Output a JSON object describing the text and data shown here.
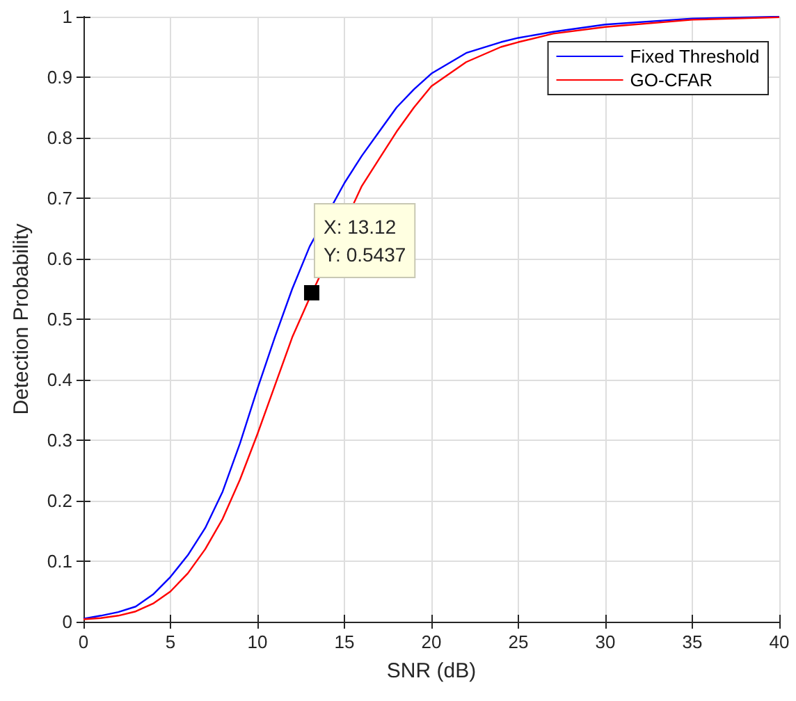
{
  "chart_data": {
    "type": "line",
    "xlabel": "SNR (dB)",
    "ylabel": "Detection Probability",
    "xlim": [
      0,
      40
    ],
    "xticks": [
      0,
      5,
      10,
      15,
      20,
      25,
      30,
      35,
      40
    ],
    "ylim": [
      0,
      1
    ],
    "yticks": [
      0,
      0.1,
      0.2,
      0.3,
      0.4,
      0.5,
      0.6,
      0.7,
      0.8,
      0.9,
      1
    ],
    "grid": true,
    "legend": "top right",
    "marker": "none",
    "line_style": "solid",
    "annotations": [
      {
        "text": "X: 13.12\nY: 0.5437",
        "x": 13.12,
        "y": 0.5437
      }
    ],
    "series": [
      {
        "name": "Fixed Threshold",
        "color": "#0000ff",
        "x": [
          0,
          1,
          2,
          3,
          4,
          5,
          6,
          7,
          8,
          9,
          10,
          11,
          12,
          13,
          14,
          15,
          16,
          17,
          18,
          19,
          20,
          22,
          24,
          25,
          27,
          30,
          35,
          40
        ],
        "values": [
          0.005,
          0.01,
          0.016,
          0.025,
          0.045,
          0.074,
          0.11,
          0.155,
          0.215,
          0.295,
          0.385,
          0.47,
          0.55,
          0.62,
          null,
          0.725,
          0.77,
          0.81,
          0.85,
          0.88,
          0.906,
          0.94,
          0.958,
          0.965,
          0.975,
          0.987,
          0.997,
          1.0
        ]
      },
      {
        "name": "GO-CFAR",
        "color": "#ff0000",
        "x": [
          0,
          1,
          2,
          3,
          4,
          5,
          6,
          7,
          8,
          9,
          10,
          11,
          12,
          13,
          14,
          15,
          16,
          17,
          18,
          19,
          20,
          22,
          24,
          25,
          27,
          30,
          35,
          40
        ],
        "values": [
          0.004,
          0.006,
          0.01,
          0.017,
          0.03,
          0.05,
          0.08,
          0.12,
          0.17,
          0.235,
          0.31,
          0.39,
          0.47,
          0.535,
          null,
          null,
          0.72,
          0.765,
          0.81,
          0.85,
          0.885,
          0.925,
          0.95,
          0.958,
          0.972,
          0.983,
          0.995,
          0.999
        ]
      }
    ]
  }
}
